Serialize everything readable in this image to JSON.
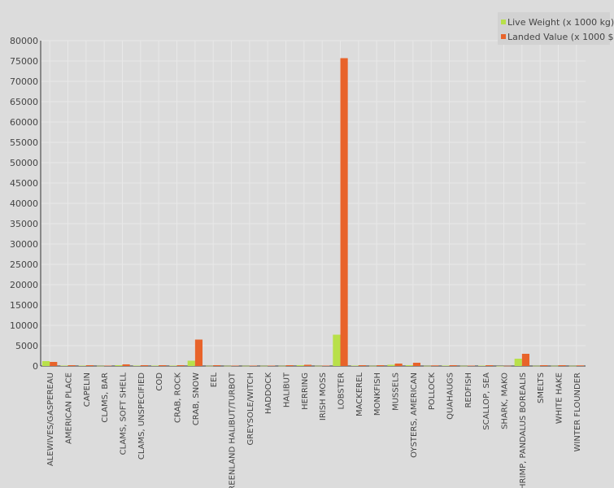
{
  "chart_data": {
    "type": "bar",
    "categories": [
      "ALEWIVES/GASPEREAU",
      "AMERICAN PLACE",
      "CAPELIN",
      "CLAMS, BAR",
      "CLAMS, SOFT SHELL",
      "CLAMS, UNSPECIFIED",
      "COD",
      "CRAB, ROCK",
      "CRAB, SNOW",
      "EEL",
      "GREENLAND HALIBUT/TURBOT",
      "GREYSOLE/WITCH",
      "HADDOCK",
      "HALIBUT",
      "HERRING",
      "IRISH MOSS",
      "LOBSTER",
      "MACKEREL",
      "MONKFISH",
      "MUSSELS",
      "OYSTERS, AMERICAN",
      "POLLOCK",
      "QUAHAUGS",
      "REDFISH",
      "SCALLOP, SEA",
      "SHARK, MAKO",
      "SHRIMP, PANDALUS BOREALIS",
      "SMELTS",
      "WHITE HAKE",
      "WINTER FLOUNDER"
    ],
    "series": [
      {
        "name": "Live Weight (x 1000 kg)",
        "color": "#b8e04a",
        "values": [
          1200,
          100,
          100,
          50,
          200,
          100,
          100,
          100,
          1300,
          50,
          50,
          50,
          50,
          50,
          200,
          50,
          7700,
          100,
          50,
          300,
          200,
          50,
          100,
          50,
          100,
          20,
          1800,
          50,
          50,
          50
        ]
      },
      {
        "name": "Landed Value (x 1000 $)",
        "color": "#e8632a",
        "values": [
          1000,
          200,
          200,
          100,
          400,
          200,
          200,
          200,
          6500,
          200,
          100,
          100,
          100,
          200,
          300,
          100,
          75700,
          200,
          200,
          600,
          800,
          150,
          200,
          100,
          200,
          50,
          3000,
          200,
          200,
          150
        ]
      }
    ],
    "yticks": [
      0,
      5000,
      10000,
      15000,
      20000,
      25000,
      30000,
      35000,
      40000,
      45000,
      50000,
      55000,
      60000,
      65000,
      70000,
      75000,
      80000
    ],
    "ylim": [
      0,
      80000
    ],
    "grid": true,
    "legend_position": "top-right"
  }
}
